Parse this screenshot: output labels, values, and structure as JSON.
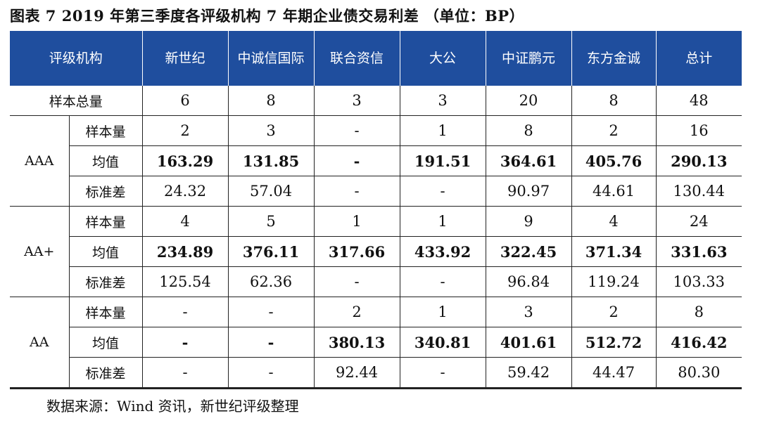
{
  "caption": "图表 7   2019 年第三季度各评级机构 7 年期企业债交易利差 （单位：BP）",
  "header": [
    "评级机构",
    "新世纪",
    "中诚信国际",
    "联合资信",
    "大公",
    "中证鹏元",
    "东方金诚",
    "总计"
  ],
  "sample_total": {
    "label": "样本总量",
    "values": [
      "6",
      "8",
      "3",
      "3",
      "20",
      "8",
      "48"
    ]
  },
  "groups": [
    {
      "rating": "AAA",
      "rows": [
        {
          "label": "样本量",
          "values": [
            "2",
            "3",
            "-",
            "1",
            "8",
            "2",
            "16"
          ]
        },
        {
          "label": "均值",
          "values": [
            "163.29",
            "131.85",
            "-",
            "191.51",
            "364.61",
            "405.76",
            "290.13"
          ]
        },
        {
          "label": "标准差",
          "values": [
            "24.32",
            "57.04",
            "-",
            "-",
            "90.97",
            "44.61",
            "130.44"
          ]
        }
      ]
    },
    {
      "rating": "AA+",
      "rows": [
        {
          "label": "样本量",
          "values": [
            "4",
            "5",
            "1",
            "1",
            "9",
            "4",
            "24"
          ]
        },
        {
          "label": "均值",
          "values": [
            "234.89",
            "376.11",
            "317.66",
            "433.92",
            "322.45",
            "371.34",
            "331.63"
          ]
        },
        {
          "label": "标准差",
          "values": [
            "125.54",
            "62.36",
            "-",
            "-",
            "96.84",
            "119.24",
            "103.33"
          ]
        }
      ]
    },
    {
      "rating": "AA",
      "rows": [
        {
          "label": "样本量",
          "values": [
            "-",
            "-",
            "2",
            "1",
            "3",
            "2",
            "8"
          ]
        },
        {
          "label": "均值",
          "values": [
            "-",
            "-",
            "380.13",
            "340.81",
            "401.61",
            "512.72",
            "416.42"
          ]
        },
        {
          "label": "标准差",
          "values": [
            "-",
            "-",
            "92.44",
            "-",
            "59.42",
            "44.47",
            "80.30"
          ]
        }
      ]
    }
  ],
  "source": "数据来源：Wind 资讯，新世纪评级整理",
  "colors": {
    "header_bg": "#1f4e9e",
    "header_text": "#ffffff"
  }
}
